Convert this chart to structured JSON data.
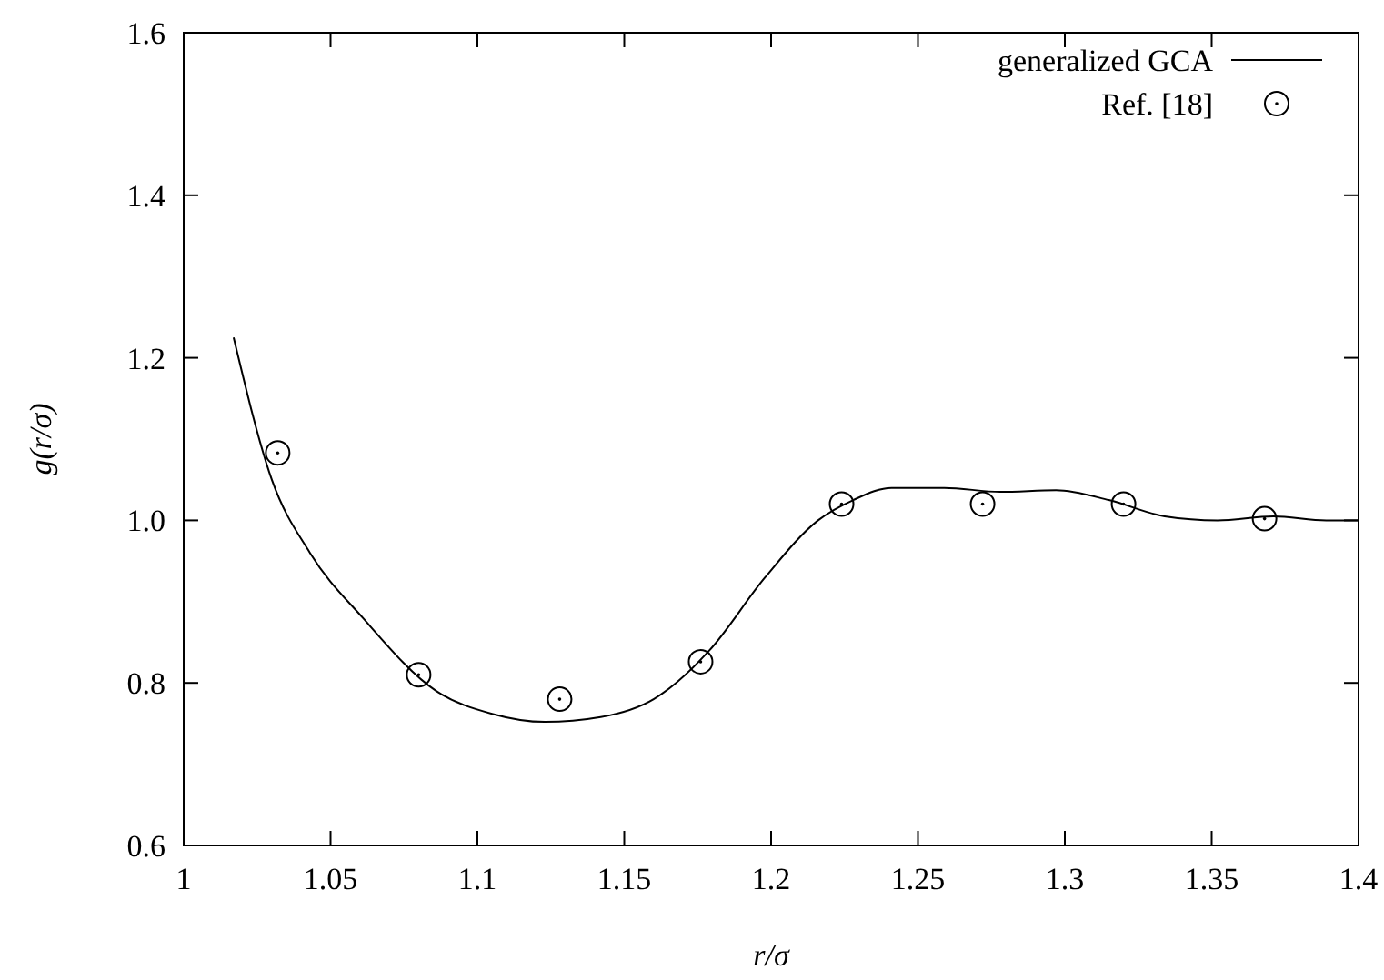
{
  "chart_data": {
    "type": "line",
    "xlabel": "r/σ",
    "ylabel": "g(r/σ)",
    "xlim": [
      1,
      1.4
    ],
    "ylim": [
      0.6,
      1.6
    ],
    "xticks": [
      1,
      1.05,
      1.1,
      1.15,
      1.2,
      1.25,
      1.3,
      1.35,
      1.4
    ],
    "yticks": [
      0.6,
      0.8,
      {
        "value": 1,
        "label": "1.0"
      },
      1.2,
      1.4,
      1.6
    ],
    "grid": false,
    "legend": "top right",
    "series": [
      {
        "name": "generalized GCA",
        "color": "#000000",
        "marker": "none",
        "line_style": "solid",
        "x": [
          1.017,
          1.03,
          1.043,
          1.061,
          1.086,
          1.105,
          1.123,
          1.142,
          1.16,
          1.179,
          1.198,
          1.216,
          1.228,
          1.241,
          1.259,
          1.278,
          1.297,
          1.315,
          1.334,
          1.352,
          1.371,
          1.389,
          1.4
        ],
        "values": [
          1.225,
          1.05,
          0.96,
          0.88,
          0.79,
          0.762,
          0.752,
          0.758,
          0.78,
          0.84,
          0.93,
          1.0,
          1.025,
          1.04,
          1.04,
          1.035,
          1.037,
          1.025,
          1.005,
          1.0,
          1.005,
          1.0,
          1.0
        ]
      },
      {
        "name": "Ref. [18]",
        "type": "scatter",
        "color": "#000000",
        "marker": "circle",
        "x": [
          1.032,
          1.08,
          1.128,
          1.176,
          1.224,
          1.272,
          1.32,
          1.368
        ],
        "values": [
          1.083,
          0.81,
          0.78,
          0.826,
          1.02,
          1.02,
          1.02,
          1.002
        ]
      }
    ]
  }
}
